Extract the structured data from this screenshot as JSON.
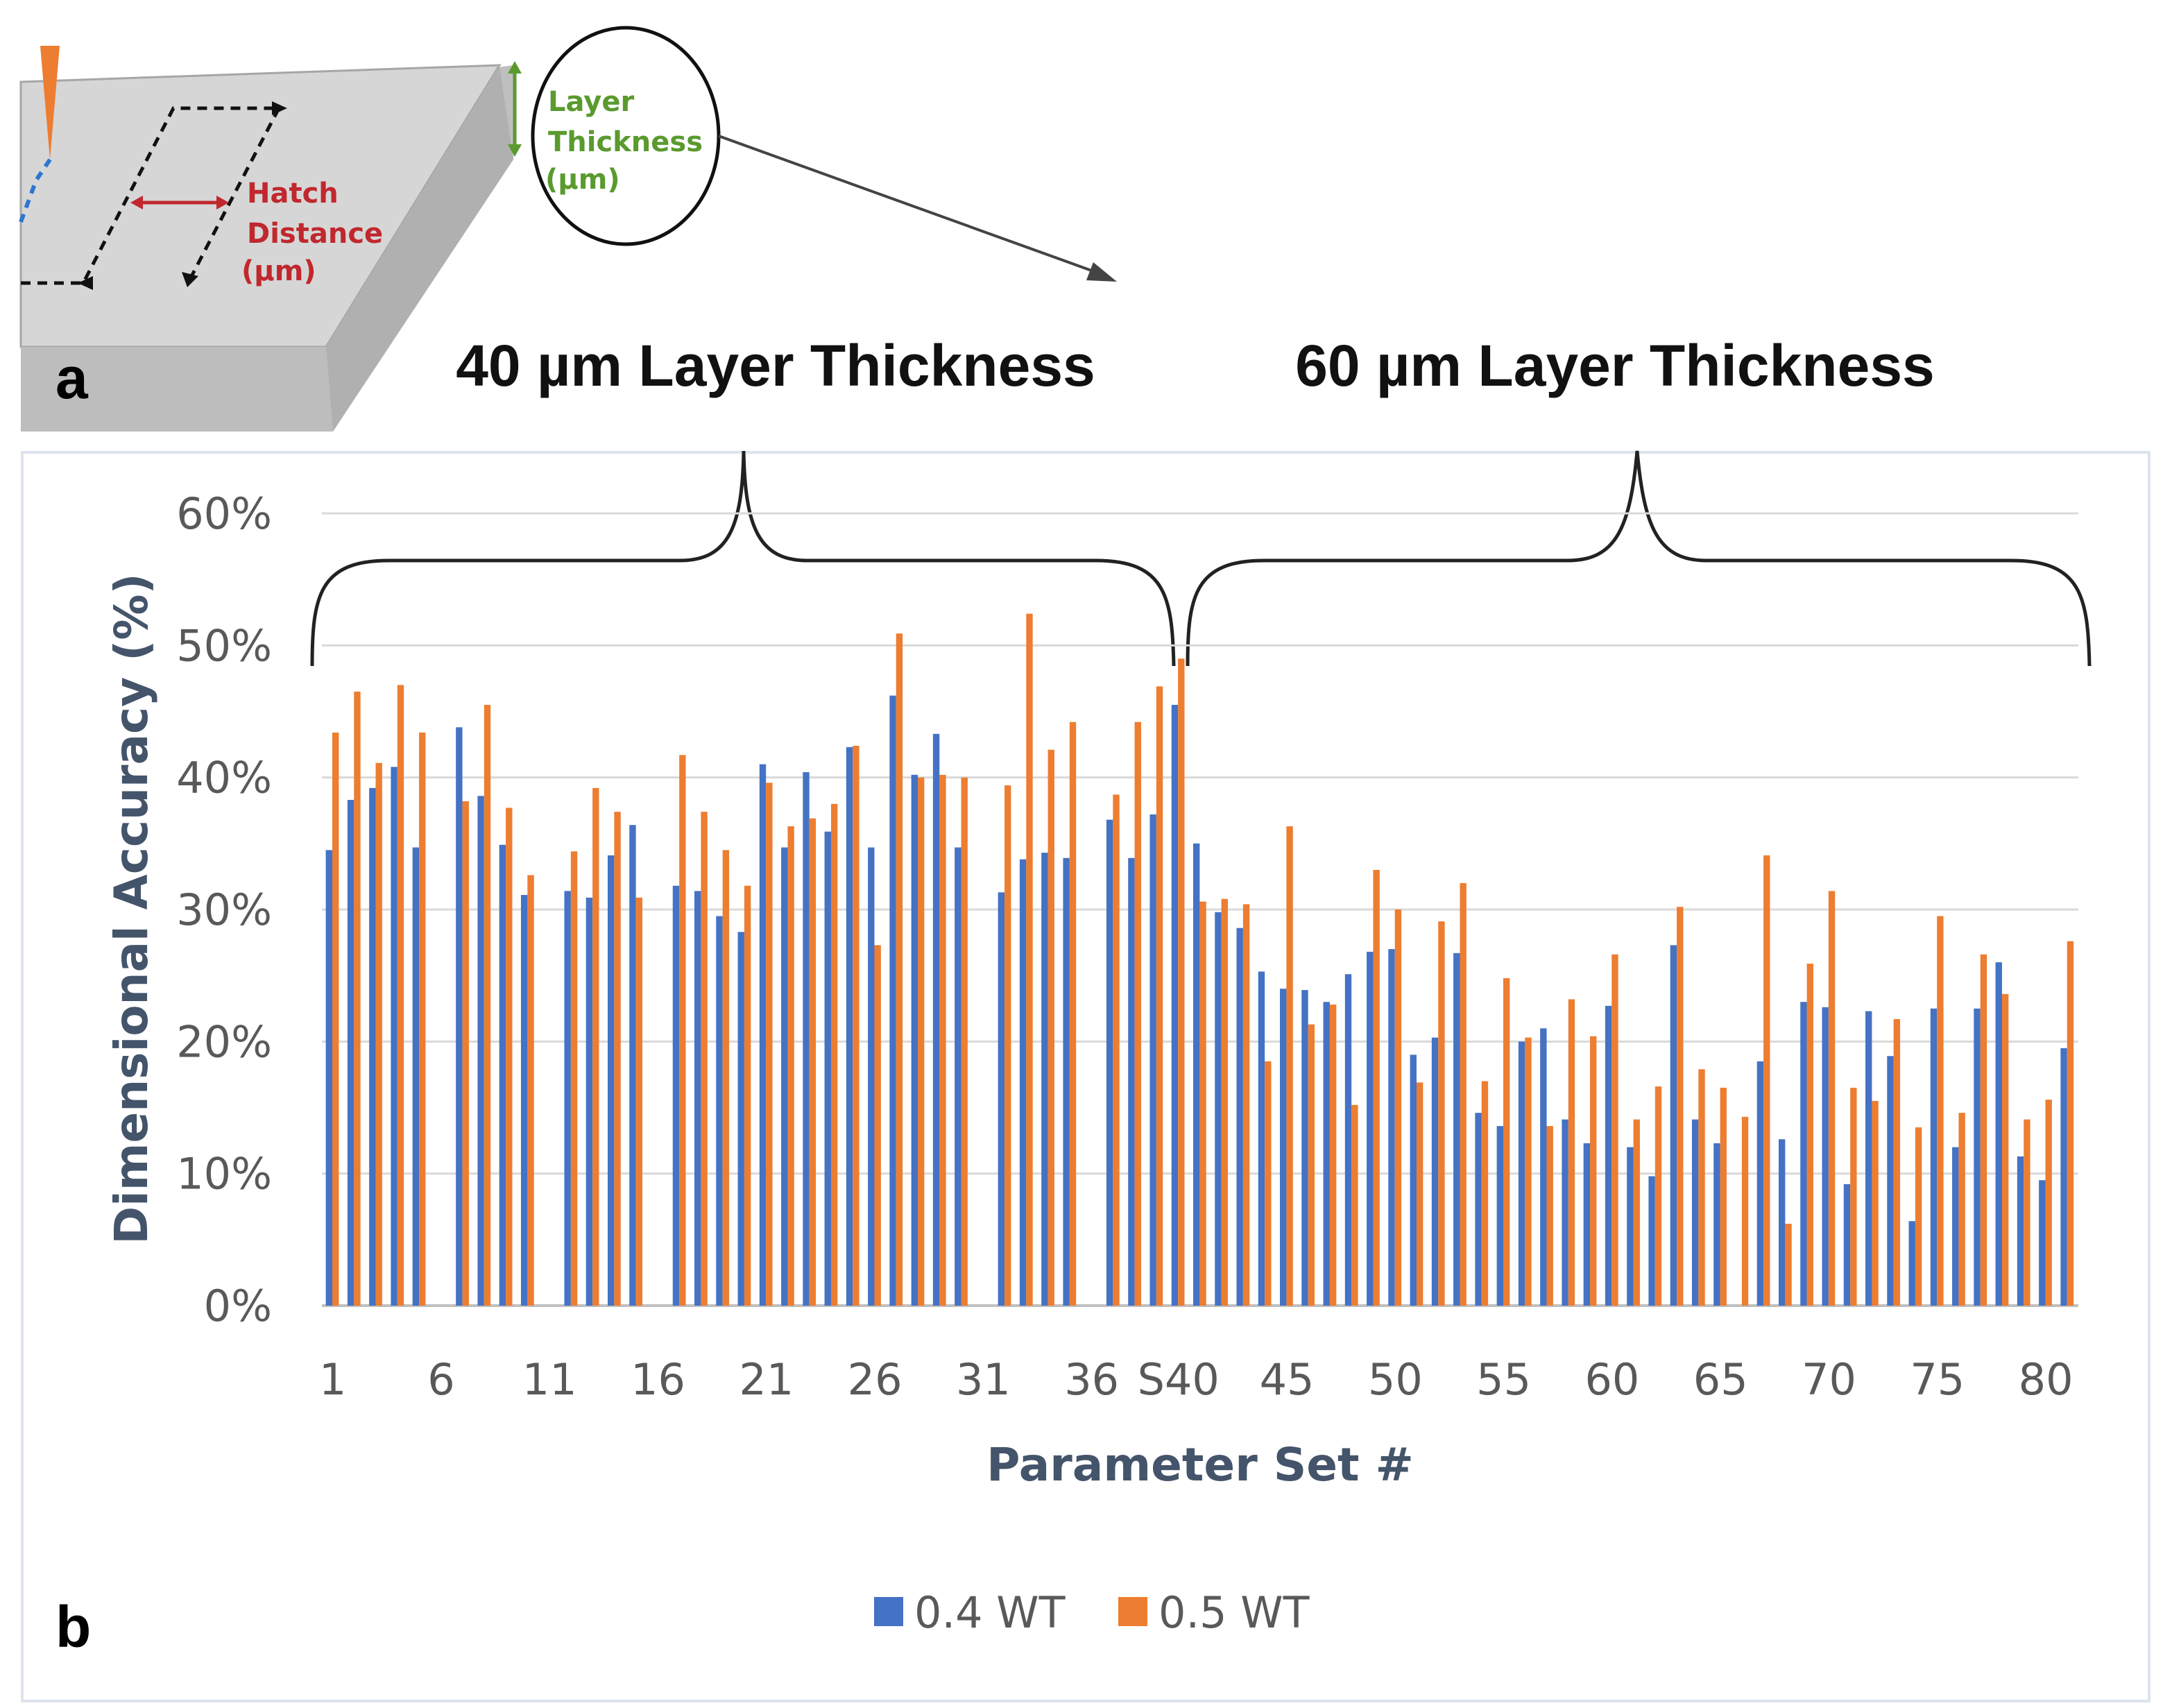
{
  "diagram": {
    "panel_label": "a",
    "hatch_label": [
      "Hatch",
      "Distance",
      "(µm)"
    ],
    "layer_label": [
      "Layer",
      "Thickness",
      "(µm)"
    ]
  },
  "group_titles": {
    "left": "40 µm Layer Thickness",
    "right": "60 µm Layer Thickness"
  },
  "chart_panel_label": "b",
  "colors": {
    "series_a": "#4472c4",
    "series_b": "#ed7d31",
    "grid": "#d9d9d9"
  },
  "chart_data": {
    "type": "bar",
    "title": "",
    "xlabel": "Parameter Set #",
    "ylabel": "Dimensional Accuracy (%)",
    "ylim": [
      0,
      60
    ],
    "y_ticks": [
      "0%",
      "10%",
      "20%",
      "30%",
      "40%",
      "50%",
      "60%"
    ],
    "x_tick_labels": [
      "1",
      "6",
      "11",
      "16",
      "21",
      "26",
      "31",
      "36",
      "S40",
      "45",
      "50",
      "55",
      "60",
      "65",
      "70",
      "75",
      "80"
    ],
    "x_tick_positions": [
      1,
      6,
      11,
      16,
      21,
      26,
      31,
      36,
      40,
      45,
      50,
      55,
      60,
      65,
      70,
      75,
      80
    ],
    "categories": [
      "1",
      "2",
      "3",
      "4",
      "5",
      "6",
      "7",
      "8",
      "9",
      "10",
      "11",
      "12",
      "13",
      "14",
      "15",
      "16",
      "17",
      "18",
      "19",
      "20",
      "21",
      "22",
      "23",
      "24",
      "25",
      "26",
      "27",
      "28",
      "29",
      "30",
      "31",
      "32",
      "33",
      "34",
      "35",
      "36",
      "37",
      "38",
      "39",
      "40",
      "41",
      "42",
      "43",
      "44",
      "45",
      "46",
      "47",
      "48",
      "49",
      "50",
      "51",
      "52",
      "53",
      "54",
      "55",
      "56",
      "57",
      "58",
      "59",
      "60",
      "61",
      "62",
      "63",
      "64",
      "65",
      "66",
      "67",
      "68",
      "69",
      "70",
      "71",
      "72",
      "73",
      "74",
      "75",
      "76",
      "77",
      "78",
      "79",
      "80",
      "81"
    ],
    "series": [
      {
        "name": "0.4 WT",
        "values": [
          34.5,
          38.3,
          39.2,
          40.8,
          34.7,
          0,
          43.8,
          38.6,
          34.9,
          31.1,
          0,
          31.4,
          30.9,
          34.1,
          36.4,
          0,
          31.8,
          31.4,
          29.5,
          28.3,
          41.0,
          34.7,
          40.4,
          35.9,
          42.3,
          34.7,
          46.2,
          40.2,
          43.3,
          34.7,
          0,
          31.3,
          33.8,
          34.3,
          33.9,
          0,
          36.8,
          33.9,
          37.2,
          45.5,
          35.0,
          29.8,
          28.6,
          25.3,
          24.0,
          23.9,
          23.0,
          25.1,
          26.8,
          27.0,
          19.0,
          20.3,
          26.7,
          14.6,
          13.6,
          20.0,
          21.0,
          14.1,
          12.3,
          22.7,
          12.0,
          9.8,
          27.3,
          14.1,
          12.3,
          0,
          18.5,
          12.6,
          23.0,
          22.6,
          9.2,
          22.3,
          18.9,
          6.4,
          22.5,
          12.0,
          22.5,
          26.0,
          11.3,
          9.5,
          19.5
        ]
      },
      {
        "name": "0.5 WT",
        "values": [
          43.4,
          46.5,
          41.1,
          47.0,
          43.4,
          0,
          38.2,
          45.5,
          37.7,
          32.6,
          0,
          34.4,
          39.2,
          37.4,
          30.9,
          0,
          41.7,
          37.4,
          34.5,
          31.8,
          39.6,
          36.3,
          36.9,
          38.0,
          42.4,
          27.3,
          50.9,
          40.0,
          40.2,
          40.0,
          0,
          39.4,
          52.4,
          42.1,
          44.2,
          0,
          38.7,
          44.2,
          46.9,
          49.0,
          30.6,
          30.8,
          30.4,
          18.5,
          36.3,
          21.3,
          22.8,
          15.2,
          33.0,
          30.0,
          16.9,
          29.1,
          32.0,
          17.0,
          24.8,
          20.3,
          13.6,
          23.2,
          20.4,
          26.6,
          14.1,
          16.6,
          30.2,
          17.9,
          16.5,
          14.3,
          34.1,
          6.2,
          25.9,
          31.4,
          16.5,
          15.5,
          21.7,
          13.5,
          29.5,
          14.6,
          26.6,
          23.6,
          14.1,
          15.6,
          27.6
        ]
      }
    ],
    "legend_position": "bottom-center",
    "group_labels": [
      "40 µm Layer Thickness",
      "60 µm Layer Thickness"
    ]
  }
}
